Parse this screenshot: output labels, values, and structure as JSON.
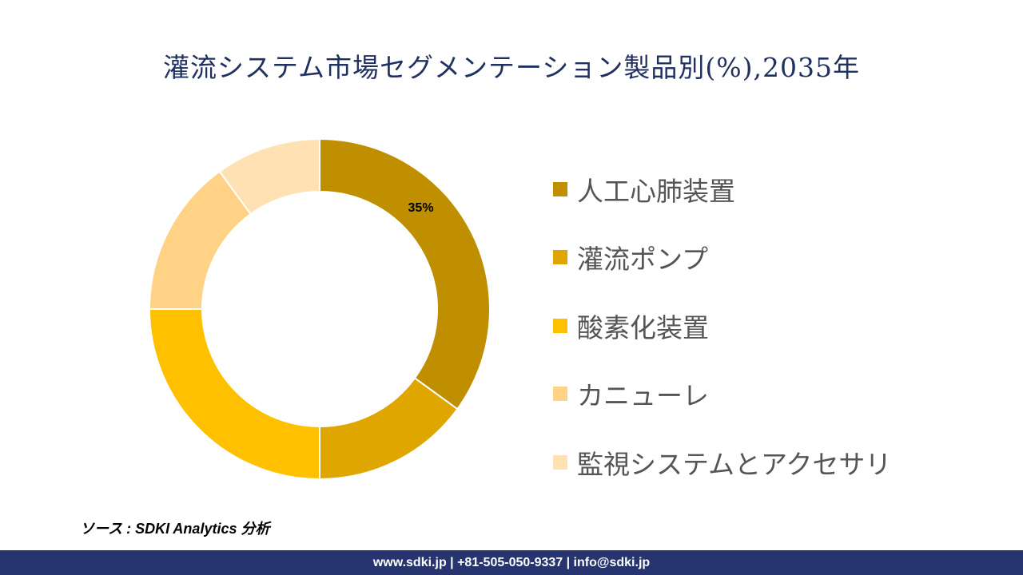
{
  "title": "灌流システム市場セグメンテーション製品別(%),2035年",
  "chart_data": {
    "type": "pie",
    "donut": true,
    "title": "灌流システム市場セグメンテーション製品別(%),2035年",
    "categories": [
      "人工心肺装置",
      "灌流ポンプ",
      "酸素化装置",
      "カニューレ",
      "監視システムとアクセサリ"
    ],
    "values": [
      35,
      15,
      25,
      15,
      10
    ],
    "colors": [
      "#BF8F00",
      "#DFA600",
      "#FFC000",
      "#FFD285",
      "#FFE1B4"
    ],
    "data_labels": [
      "35%",
      "",
      "",
      "",
      ""
    ],
    "legend_position": "right"
  },
  "source": "ソース : SDKI Analytics 分析",
  "footer": "www.sdki.jp | +81-505-050-9337 | info@sdki.jp"
}
